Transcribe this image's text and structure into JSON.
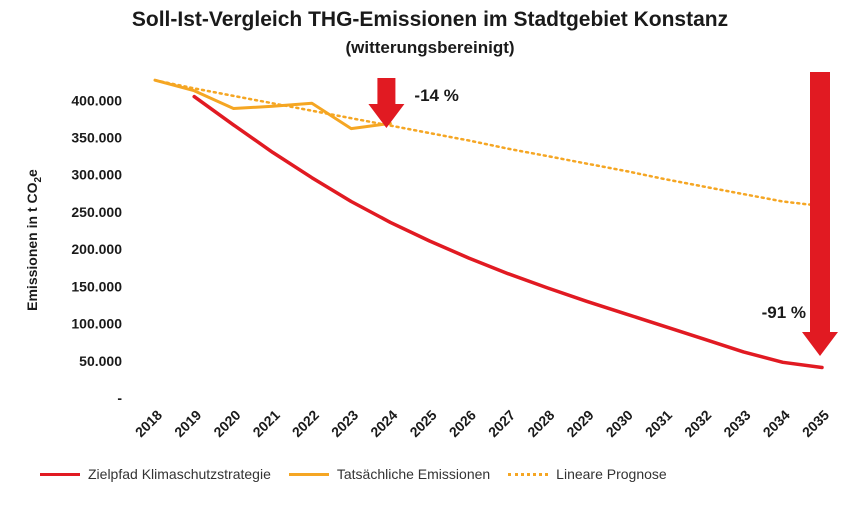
{
  "chart_data": {
    "type": "line",
    "title": "Soll-Ist-Vergleich THG-Emissionen im Stadtgebiet Konstanz",
    "subtitle": "(witterungsbereinigt)",
    "ylabel_main": "Emissionen in t CO",
    "ylabel_sub": "2",
    "ylabel_tail": "e",
    "ylim": [
      0,
      430000
    ],
    "yticks": [
      {
        "value": 0,
        "label": "-"
      },
      {
        "value": 50000,
        "label": "50.000"
      },
      {
        "value": 100000,
        "label": "100.000"
      },
      {
        "value": 150000,
        "label": "150.000"
      },
      {
        "value": 200000,
        "label": "200.000"
      },
      {
        "value": 250000,
        "label": "250.000"
      },
      {
        "value": 300000,
        "label": "300.000"
      },
      {
        "value": 350000,
        "label": "350.000"
      },
      {
        "value": 400000,
        "label": "400.000"
      }
    ],
    "x": [
      "2018",
      "2019",
      "2020",
      "2021",
      "2022",
      "2023",
      "2024",
      "2025",
      "2026",
      "2027",
      "2028",
      "2029",
      "2030",
      "2031",
      "2032",
      "2033",
      "2034",
      "2035"
    ],
    "grid": false,
    "legend_position": "bottom",
    "series": [
      {
        "name": "Zielpfad Klimaschutzstrategie",
        "color": "#e11a22",
        "style": "solid",
        "values": [
          null,
          405000,
          367000,
          330000,
          296000,
          264000,
          236000,
          211000,
          188000,
          167000,
          148000,
          130000,
          113000,
          96000,
          79000,
          62000,
          48000,
          41000
        ]
      },
      {
        "name": "Tatsächliche Emissionen",
        "color": "#f5a623",
        "style": "solid",
        "values": [
          427000,
          413000,
          389000,
          392000,
          396000,
          362000,
          369000,
          null,
          null,
          null,
          null,
          null,
          null,
          null,
          null,
          null,
          null,
          null
        ]
      },
      {
        "name": "Lineare Prognose",
        "color": "#f5a623",
        "style": "dotted",
        "values": [
          427000,
          416000,
          406000,
          396000,
          386000,
          376000,
          366000,
          356000,
          346000,
          335000,
          325000,
          315000,
          305000,
          294000,
          284000,
          274000,
          264000,
          258000
        ]
      }
    ],
    "annotations": [
      {
        "text": "-14 %",
        "x": "2024",
        "arrow_color": "#e11a22"
      },
      {
        "text": "-91 %",
        "x": "2035",
        "arrow_color": "#e11a22"
      }
    ]
  }
}
